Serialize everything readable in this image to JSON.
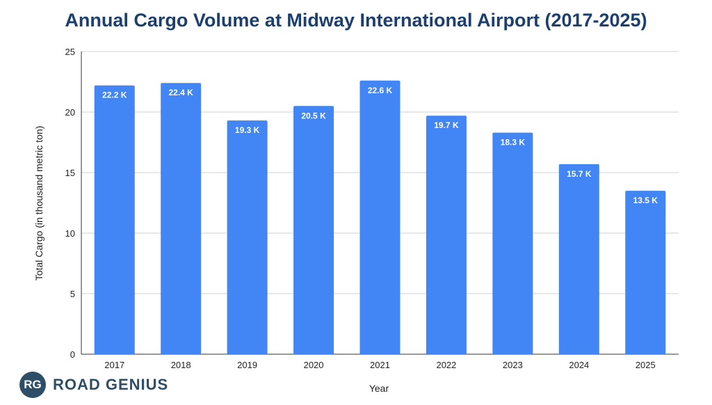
{
  "chart_data": {
    "type": "bar",
    "title": "Annual Cargo Volume at Midway International Airport (2017-2025)",
    "xlabel": "Year",
    "ylabel": "Total Cargo (in thousand metric ton)",
    "categories": [
      "2017",
      "2018",
      "2019",
      "2020",
      "2021",
      "2022",
      "2023",
      "2024",
      "2025"
    ],
    "values": [
      22.2,
      22.4,
      19.3,
      20.5,
      22.6,
      19.7,
      18.3,
      15.7,
      13.5
    ],
    "data_labels": [
      "22.2 K",
      "22.4 K",
      "19.3 K",
      "20.5 K",
      "22.6 K",
      "19.7 K",
      "18.3 K",
      "15.7 K",
      "13.5 K"
    ],
    "ylim": [
      0,
      25
    ],
    "yticks": [
      0,
      5,
      10,
      15,
      20,
      25
    ],
    "grid": true,
    "bar_color": "#4285f4"
  },
  "branding": {
    "badge": "RG",
    "name": "ROAD GENIUS"
  }
}
